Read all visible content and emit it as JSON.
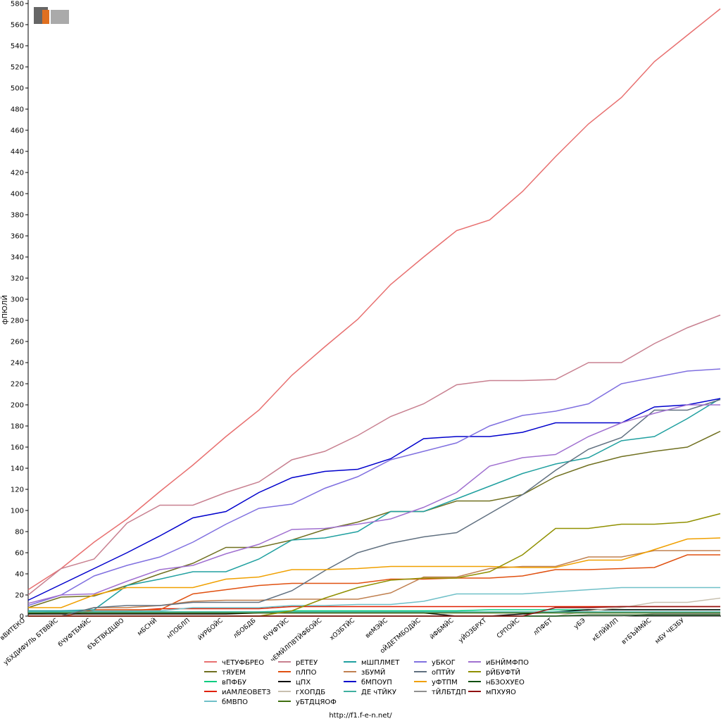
{
  "chart_data": {
    "type": "line",
    "y_label": "фПЮЛЙ",
    "footer": "http://f1.f-e-n.net/",
    "categories": [
      "вВИТЕКО",
      "уБХДИФУЛЬ БТВВЙС",
      "бЧУФТБМЙС",
      "бЪЕТВКДЦВО",
      "мБСНЙ",
      "нПОБЛП",
      "йУРБОЙС",
      "лБОБДБ",
      "бЧУФТЙС",
      "чЕМЙЛПВТЙФБОЙС",
      "хОЗБТЙС",
      "веМЭЙС",
      "оЙДЕТМБОДЙС",
      "йФБМЙС",
      "уЙОЗБРХТ",
      "СРПОЙС",
      "лПФБТ",
      "уБЭ",
      "кЕЛЙЙЛП",
      "втБЪЙМЙС",
      "мБУ ЧЕЗБУ",
      null
    ],
    "ylim": [
      0,
      580
    ],
    "yticks": [
      0,
      20,
      40,
      60,
      80,
      100,
      120,
      140,
      160,
      180,
      200,
      220,
      240,
      260,
      280,
      300,
      320,
      340,
      360,
      380,
      400,
      420,
      440,
      460,
      480,
      500,
      520,
      540,
      560,
      580
    ],
    "grid": false,
    "series": [
      {
        "name": "чЕТУФБРЕО",
        "color": "#e87070",
        "values": [
          25,
          45,
          70,
          92,
          118,
          143,
          170,
          195,
          228,
          255,
          281,
          314,
          340,
          365,
          375,
          402,
          435,
          466,
          491,
          525,
          550,
          575
        ]
      },
      {
        "name": "тЯУЕМ",
        "color": "#707020",
        "values": [
          8,
          18,
          19,
          29,
          40,
          50,
          65,
          65,
          72,
          82,
          89,
          99,
          99,
          109,
          109,
          115,
          132,
          143,
          151,
          156,
          160,
          175
        ]
      },
      {
        "name": "вПФБУ",
        "color": "#00cc80",
        "values": [
          2,
          4,
          4,
          4,
          4,
          4,
          4,
          4,
          5,
          5,
          5,
          5,
          5,
          5,
          6,
          6,
          6,
          6,
          6,
          6,
          6,
          6
        ]
      },
      {
        "name": "иАМЛЕОВЕТЗ",
        "color": "#e02000",
        "values": [
          0,
          0,
          5,
          5,
          7,
          7,
          7,
          7,
          9,
          9,
          9,
          9,
          9,
          9,
          9,
          9,
          9,
          9,
          9,
          9,
          9,
          9
        ]
      },
      {
        "name": "бМВПО",
        "color": "#70c0c8",
        "values": [
          5,
          5,
          5,
          5,
          5,
          8,
          8,
          8,
          10,
          10,
          11,
          11,
          14,
          21,
          21,
          21,
          23,
          25,
          27,
          27,
          27,
          27
        ]
      },
      {
        "name": "рЕТЕУ",
        "color": "#c88090",
        "values": [
          20,
          45,
          54,
          88,
          105,
          105,
          117,
          127,
          148,
          156,
          171,
          189,
          201,
          219,
          223,
          223,
          224,
          240,
          240,
          258,
          273,
          285
        ]
      },
      {
        "name": "пЛПО",
        "color": "#e05010",
        "values": [
          0,
          0,
          6,
          6,
          6,
          21,
          25,
          29,
          31,
          31,
          31,
          35,
          35,
          36,
          36,
          38,
          44,
          44,
          45,
          46,
          58,
          58
        ]
      },
      {
        "name": "цПХ",
        "color": "#000000",
        "values": [
          2,
          2,
          2,
          2,
          2,
          2,
          2,
          3,
          3,
          3,
          3,
          3,
          3,
          0,
          0,
          2,
          4,
          6,
          6,
          6,
          6,
          6
        ]
      },
      {
        "name": "гХОПДБ",
        "color": "#c8c0b0",
        "values": [
          0,
          0,
          0,
          0,
          0,
          0,
          0,
          0,
          0,
          0,
          0,
          0,
          0,
          0,
          0,
          0,
          0,
          5,
          8,
          13,
          13,
          17
        ]
      },
      {
        "name": "уБТДЦЯОФ",
        "color": "#407010",
        "values": [
          3,
          3,
          3,
          3,
          3,
          3,
          3,
          3,
          3,
          3,
          3,
          3,
          3,
          3,
          3,
          3,
          3,
          3,
          3,
          3,
          3,
          3
        ]
      },
      {
        "name": "мШПЛМЕТ",
        "color": "#20a0a0",
        "values": [
          5,
          5,
          6,
          29,
          35,
          42,
          42,
          54,
          72,
          74,
          80,
          99,
          99,
          111,
          123,
          135,
          144,
          150,
          166,
          170,
          187,
          206
        ]
      },
      {
        "name": "зБУМЙ",
        "color": "#c08050",
        "values": [
          0,
          0,
          8,
          8,
          10,
          14,
          15,
          15,
          16,
          16,
          16,
          22,
          37,
          37,
          45,
          47,
          47,
          56,
          56,
          62,
          62,
          62
        ]
      },
      {
        "name": "бМПОУП",
        "color": "#0000cc",
        "values": [
          15,
          30,
          45,
          60,
          76,
          93,
          99,
          117,
          131,
          137,
          139,
          149,
          168,
          170,
          170,
          174,
          183,
          183,
          183,
          198,
          200,
          206
        ]
      },
      {
        "name": "ДЕ чТЙКУ",
        "color": "#40b0a0",
        "values": [
          4,
          4,
          4,
          4,
          4,
          4,
          4,
          4,
          4,
          4,
          4,
          4,
          4,
          4,
          4,
          4,
          4,
          4,
          4,
          4,
          4,
          4
        ]
      },
      {
        "name": "уБКОГ",
        "color": "#8070e0",
        "values": [
          10,
          20,
          38,
          48,
          56,
          70,
          87,
          102,
          106,
          121,
          132,
          148,
          156,
          164,
          180,
          190,
          194,
          201,
          220,
          226,
          232,
          234
        ]
      },
      {
        "name": "оПТЙУ",
        "color": "#607080",
        "values": [
          0,
          0,
          8,
          10,
          10,
          13,
          13,
          13,
          24,
          43,
          60,
          69,
          75,
          79,
          97,
          115,
          138,
          158,
          169,
          195,
          195,
          205
        ]
      },
      {
        "name": "уФТПМ",
        "color": "#f0a000",
        "values": [
          8,
          8,
          20,
          27,
          27,
          27,
          35,
          37,
          44,
          44,
          45,
          47,
          47,
          47,
          47,
          46,
          46,
          53,
          53,
          63,
          73,
          74
        ]
      },
      {
        "name": "тЙЛБТДП",
        "color": "#909090",
        "values": [
          0,
          0,
          0,
          0,
          0,
          0,
          0,
          0,
          0,
          0,
          0,
          0,
          0,
          0,
          0,
          0,
          0,
          0,
          0,
          2,
          2,
          2
        ]
      },
      {
        "name": "иБНЙМФПО",
        "color": "#a070d0",
        "values": [
          12,
          20,
          21,
          33,
          44,
          48,
          59,
          68,
          82,
          83,
          87,
          92,
          103,
          117,
          142,
          150,
          153,
          170,
          183,
          192,
          200,
          200
        ]
      },
      {
        "name": "рЙБУФТЙ",
        "color": "#909000",
        "values": [
          0,
          0,
          0,
          0,
          0,
          0,
          0,
          0,
          5,
          17,
          27,
          34,
          36,
          36,
          42,
          58,
          83,
          83,
          87,
          87,
          89,
          97
        ]
      },
      {
        "name": "нБЗОХУЕО",
        "color": "#105010",
        "values": [
          0,
          0,
          0,
          0,
          0,
          0,
          0,
          0,
          0,
          0,
          0,
          0,
          0,
          0,
          0,
          0,
          0,
          1,
          1,
          1,
          1,
          1
        ]
      },
      {
        "name": "мПХУЯО",
        "color": "#901010",
        "values": [
          0,
          0,
          0,
          0,
          0,
          0,
          0,
          0,
          0,
          0,
          0,
          0,
          0,
          0,
          0,
          0,
          8,
          8,
          9,
          9,
          9,
          9
        ]
      }
    ]
  }
}
